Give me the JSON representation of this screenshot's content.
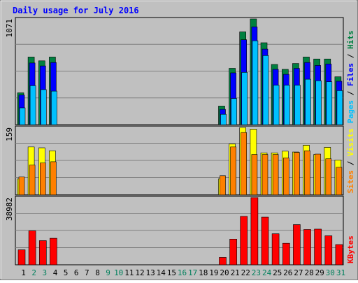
{
  "chart_data": {
    "type": "bar",
    "title": "Daily usage for July 2016",
    "categories": [
      "1",
      "2",
      "3",
      "4",
      "5",
      "6",
      "7",
      "8",
      "9",
      "10",
      "11",
      "12",
      "13",
      "14",
      "15",
      "16",
      "17",
      "18",
      "19",
      "20",
      "21",
      "22",
      "23",
      "24",
      "25",
      "26",
      "27",
      "28",
      "29",
      "30",
      "31"
    ],
    "weekend_days": [
      "2",
      "3",
      "9",
      "10",
      "16",
      "17",
      "23",
      "24",
      "30",
      "31"
    ],
    "panels": [
      {
        "id": "hits",
        "ymax": 1071,
        "ymax_label": "1071",
        "side_labels": [
          "Pages",
          "Files",
          "Hits"
        ],
        "series": [
          {
            "name": "Hits",
            "color": "#008040",
            "values": [
              323,
              685,
              647,
              685,
              0,
              0,
              0,
              0,
              0,
              0,
              0,
              0,
              0,
              0,
              0,
              0,
              0,
              0,
              0,
              189,
              571,
              940,
              1071,
              830,
              610,
              560,
              620,
              685,
              665,
              665,
              485
            ]
          },
          {
            "name": "Files",
            "color": "#0000ff",
            "values": [
              300,
              625,
              595,
              630,
              0,
              0,
              0,
              0,
              0,
              0,
              0,
              0,
              0,
              0,
              0,
              0,
              0,
              0,
              0,
              155,
              525,
              860,
              990,
              765,
              560,
              510,
              570,
              630,
              600,
              615,
              440
            ]
          },
          {
            "name": "Pages",
            "color": "#00c0ff",
            "values": [
              170,
              395,
              355,
              340,
              0,
              0,
              0,
              0,
              0,
              0,
              0,
              0,
              0,
              0,
              0,
              0,
              0,
              0,
              0,
              105,
              265,
              530,
              850,
              700,
              400,
              400,
              400,
              460,
              445,
              435,
              345
            ]
          }
        ]
      },
      {
        "id": "visits",
        "ymax": 159,
        "ymax_label": "159",
        "side_labels": [
          "Sites",
          "Visits"
        ],
        "series": [
          {
            "name": "Visits",
            "color": "#ffff00",
            "values": [
              38,
              113,
              111,
              104,
              0,
              0,
              0,
              0,
              0,
              0,
              0,
              0,
              0,
              0,
              0,
              0,
              0,
              0,
              0,
              38,
              120,
              159,
              155,
              99,
              99,
              103,
              101,
              117,
              95,
              112,
              82
            ]
          },
          {
            "name": "Sites",
            "color": "#ff8000",
            "values": [
              42,
              70,
              75,
              78,
              0,
              0,
              0,
              0,
              0,
              0,
              0,
              0,
              0,
              0,
              0,
              0,
              0,
              0,
              0,
              45,
              113,
              147,
              95,
              95,
              95,
              87,
              100,
              104,
              96,
              85,
              65
            ]
          }
        ]
      },
      {
        "id": "kbytes",
        "ymax": 38982,
        "ymax_label": "38982",
        "side_labels": [
          "KBytes"
        ],
        "series": [
          {
            "name": "KBytes",
            "color": "#ff0000",
            "values": [
              8700,
              19700,
              14000,
              15400,
              0,
              0,
              0,
              0,
              0,
              0,
              0,
              0,
              0,
              0,
              0,
              0,
              0,
              0,
              0,
              4300,
              14900,
              28100,
              38982,
              27600,
              18000,
              12500,
              23300,
              20500,
              20700,
              16800,
              11700
            ]
          }
        ]
      }
    ]
  },
  "colors": {
    "background": "#c0c0c0",
    "plot_area": "#c0c0c0",
    "grid": "#808080",
    "title": "#0000ff",
    "weekday_label": "#000000",
    "weekend_label": "#00805c"
  }
}
